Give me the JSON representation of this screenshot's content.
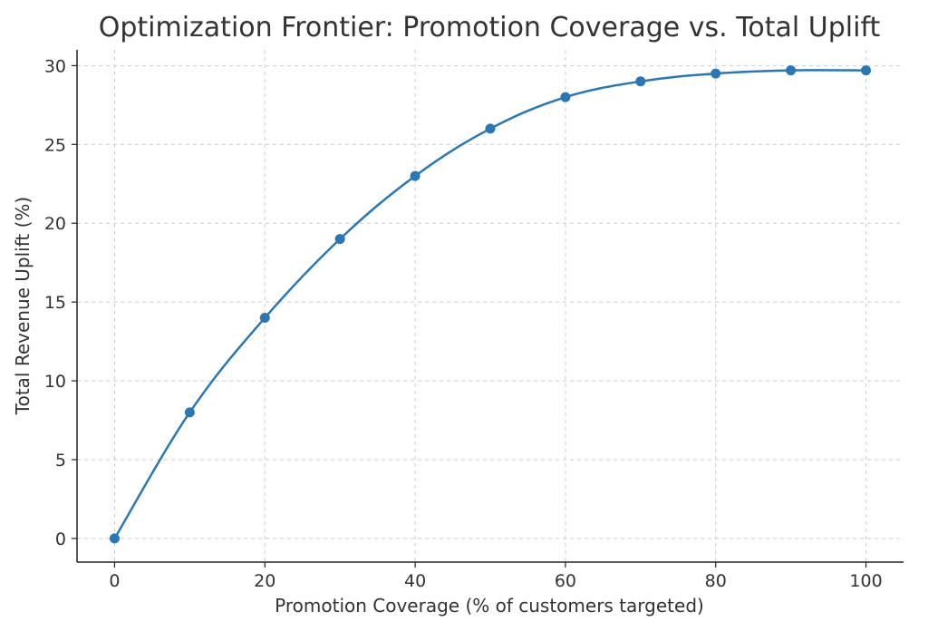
{
  "chart_data": {
    "type": "line",
    "title": "Optimization Frontier: Promotion Coverage vs. Total Uplift",
    "xlabel": "Promotion Coverage (% of customers targeted)",
    "ylabel": "Total Revenue Uplift (%)",
    "x": [
      0,
      10,
      20,
      30,
      40,
      50,
      60,
      70,
      80,
      90,
      100
    ],
    "series": [
      {
        "values": [
          0,
          8,
          14,
          19,
          23,
          26,
          28,
          29,
          29.5,
          29.7,
          29.7
        ],
        "color": "#2a77b4"
      }
    ],
    "xlim": [
      -5,
      105
    ],
    "ylim": [
      -1.5,
      31
    ],
    "xticks": [
      0,
      20,
      40,
      60,
      80,
      100
    ],
    "yticks": [
      0,
      5,
      10,
      15,
      20,
      25,
      30
    ],
    "grid": true,
    "marker": "circle"
  }
}
